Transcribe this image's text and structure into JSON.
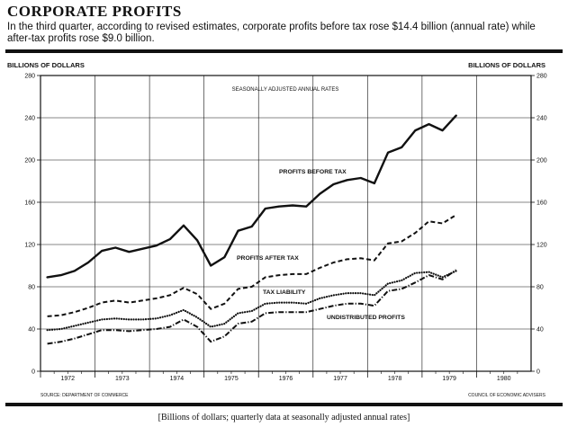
{
  "header": {
    "title": "CORPORATE PROFITS",
    "subtitle": "In the third quarter, according to revised estimates, corporate profits before tax rose $14.4 billion (annual rate) while after-tax profits rose $9.0 billion."
  },
  "caption": "[Billions of dollars; quarterly data at seasonally adjusted annual rates]",
  "chart_data": {
    "type": "line",
    "title": "SEASONALLY ADJUSTED ANNUAL RATES",
    "ylabel_left": "BILLIONS OF DOLLARS",
    "ylabel_right": "BILLIONS OF DOLLARS",
    "ylim": [
      0,
      280
    ],
    "yticks": [
      0,
      40,
      80,
      120,
      160,
      200,
      240,
      280
    ],
    "years": [
      "1972",
      "1973",
      "1974",
      "1975",
      "1976",
      "1977",
      "1978",
      "1979",
      "1980"
    ],
    "quarters_per_year": 4,
    "grid": true,
    "source_left": "SOURCE: DEPARTMENT OF COMMERCE",
    "source_right": "COUNCIL OF ECONOMIC ADVISERS",
    "series": [
      {
        "name": "Profits before tax",
        "label": "PROFITS BEFORE TAX",
        "style": "solid",
        "values": [
          89,
          91,
          95,
          103,
          114,
          117,
          113,
          116,
          119,
          125,
          138,
          124,
          100,
          108,
          133,
          137,
          154,
          156,
          157,
          156,
          168,
          177,
          181,
          183,
          178,
          207,
          212,
          228,
          234,
          228,
          242
        ]
      },
      {
        "name": "Profits after tax",
        "label": "PROFITS AFTER TAX",
        "style": "dashed",
        "values": [
          52,
          53,
          56,
          60,
          65,
          67,
          65,
          67,
          69,
          72,
          79,
          73,
          59,
          64,
          78,
          80,
          89,
          91,
          92,
          92,
          98,
          103,
          106,
          107,
          105,
          121,
          123,
          131,
          142,
          140,
          148
        ]
      },
      {
        "name": "Tax liability",
        "label": "TAX LIABILITY",
        "style": "dotted",
        "values": [
          39,
          40,
          43,
          46,
          49,
          50,
          49,
          49,
          50,
          53,
          58,
          51,
          42,
          45,
          55,
          57,
          64,
          65,
          65,
          64,
          69,
          72,
          74,
          74,
          72,
          83,
          86,
          93,
          94,
          89,
          95
        ]
      },
      {
        "name": "Undistributed profits",
        "label": "UNDISTRIBUTED PROFITS",
        "style": "dashdot",
        "values": [
          26,
          28,
          31,
          35,
          39,
          39,
          38,
          39,
          40,
          42,
          49,
          42,
          28,
          33,
          45,
          47,
          55,
          56,
          56,
          56,
          59,
          62,
          64,
          64,
          62,
          76,
          78,
          84,
          91,
          87,
          96
        ]
      }
    ]
  }
}
